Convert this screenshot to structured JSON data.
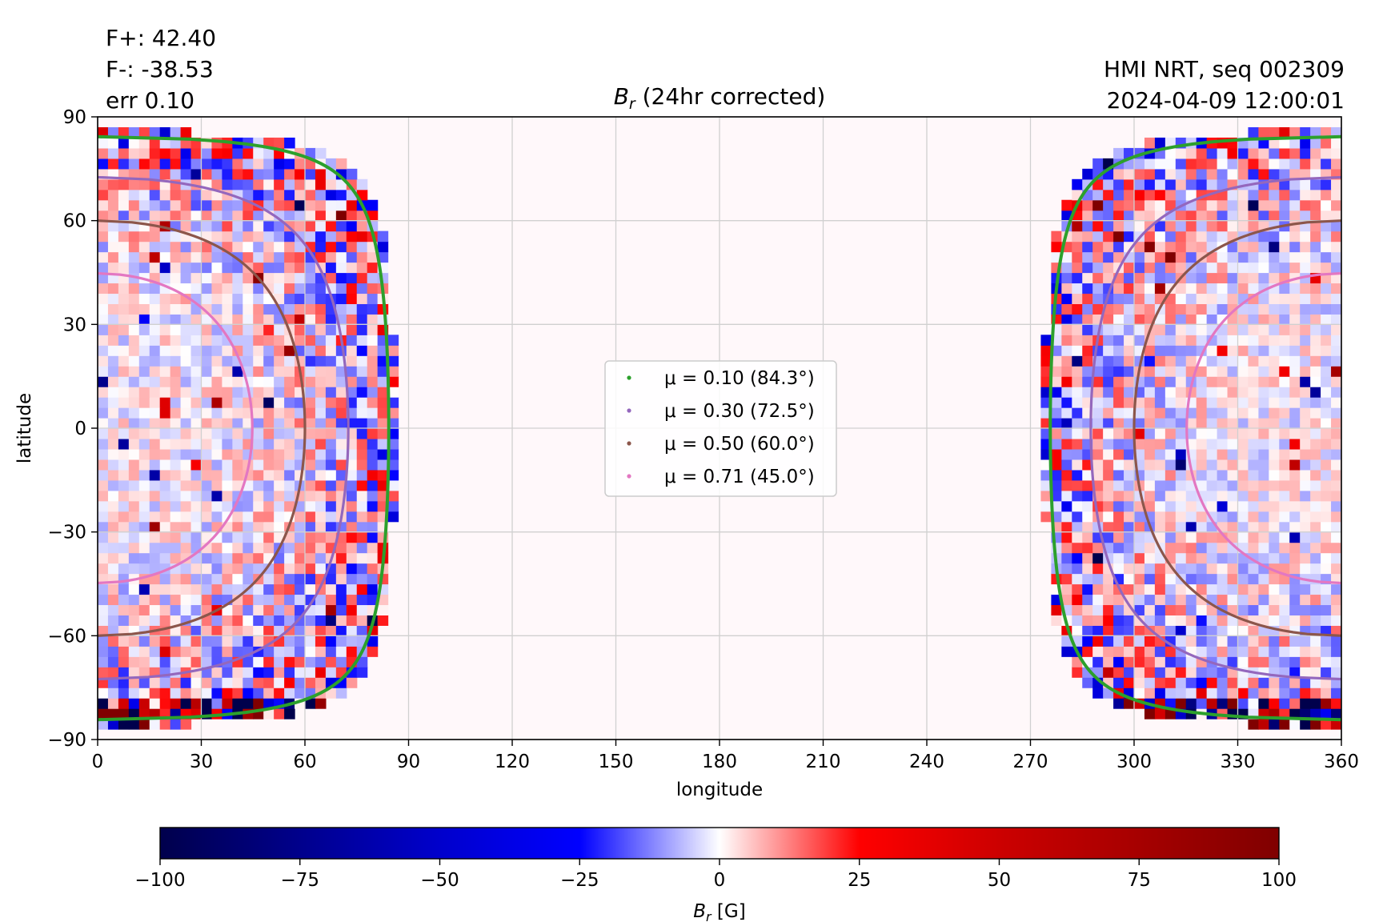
{
  "header": {
    "flux_pos": "F+: 42.40",
    "flux_neg": "F-: -38.53",
    "error": "err 0.10",
    "source": "HMI NRT, seq 002309",
    "timestamp": "2024-04-09 12:00:01",
    "title_symbol": "B",
    "title_sub": "r",
    "title_rest": " (24hr corrected)"
  },
  "chart_data": {
    "type": "heatmap",
    "xlabel": "longitude",
    "ylabel": "latitude",
    "xlim": [
      0,
      360
    ],
    "ylim": [
      -90,
      90
    ],
    "xticks": [
      "0",
      "30",
      "60",
      "90",
      "120",
      "150",
      "180",
      "210",
      "240",
      "270",
      "300",
      "330",
      "360"
    ],
    "yticks": [
      "90",
      "60",
      "30",
      "0",
      "−30",
      "−60",
      "−90"
    ],
    "grid": true,
    "central_meridian": 0,
    "legend": {
      "placement": "center",
      "entries": [
        {
          "label": "μ = 0.10 (84.3°)",
          "mu": 0.1,
          "color": "#2ca02c"
        },
        {
          "label": "μ = 0.30 (72.5°)",
          "mu": 0.3,
          "color": "#9467bd"
        },
        {
          "label": "μ = 0.50 (60.0°)",
          "mu": 0.5,
          "color": "#8c564b"
        },
        {
          "label": "μ = 0.71 (45.0°)",
          "mu": 0.71,
          "color": "#e377c2"
        }
      ]
    },
    "colorbar": {
      "min": -100,
      "max": 100,
      "ticks": [
        "−100",
        "−75",
        "−50",
        "−25",
        "0",
        "25",
        "50",
        "75",
        "100"
      ],
      "label_symbol": "B",
      "label_sub": "r",
      "label_rest": " [G]",
      "colormap": "seismic",
      "color_low": "#00004c",
      "color_mid": "#ffffff",
      "color_high": "#800000"
    },
    "colors": {
      "off_disk_fill": "#fff8fa"
    }
  }
}
